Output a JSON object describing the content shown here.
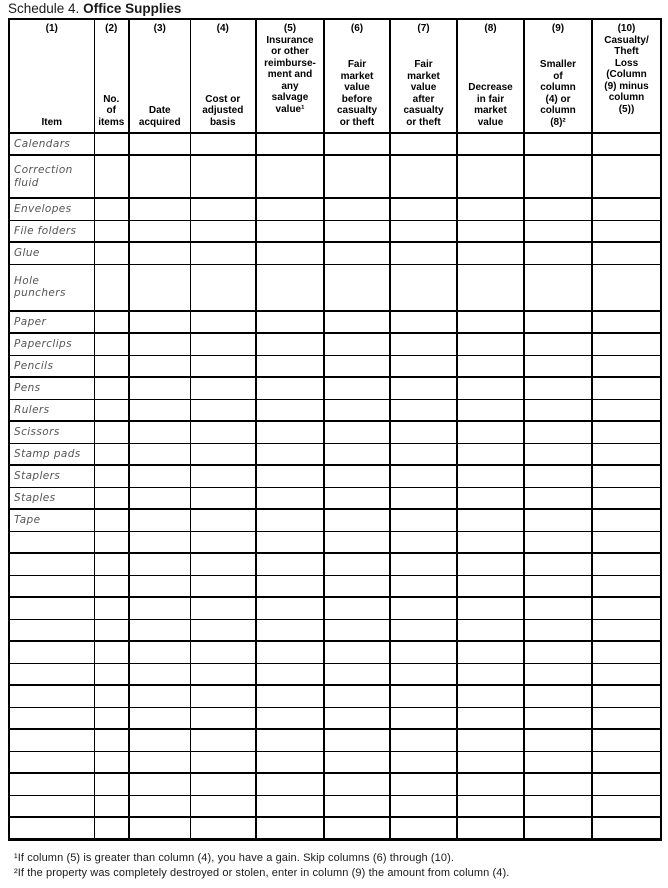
{
  "title": {
    "prefix": "Schedule 4.",
    "name": "Office Supplies"
  },
  "table": {
    "columns": [
      {
        "num": "(1)",
        "label": "Item"
      },
      {
        "num": "(2)",
        "label": "No.\nof\nitems"
      },
      {
        "num": "(3)",
        "label": "Date\nacquired"
      },
      {
        "num": "(4)",
        "label": "Cost or\nadjusted\nbasis"
      },
      {
        "num": "(5)",
        "label": "Insurance\nor other\nreimburse-\nment and\nany\nsalvage\nvalue¹"
      },
      {
        "num": "(6)",
        "label": "Fair\nmarket\nvalue\nbefore\ncasualty\nor theft"
      },
      {
        "num": "(7)",
        "label": "Fair\nmarket\nvalue\nafter\ncasualty\nor theft"
      },
      {
        "num": "(8)",
        "label": "Decrease\nin fair\nmarket\nvalue"
      },
      {
        "num": "(9)",
        "label": "Smaller\nof\ncolumn\n(4) or\ncolumn\n(8)²"
      },
      {
        "num": "(10)",
        "label": "Casualty/\nTheft\nLoss\n(Column\n(9) minus\ncolumn\n(5))"
      }
    ],
    "rows": [
      {
        "item": "Calendars",
        "size": "s",
        "border": "thick"
      },
      {
        "item": "Correction\nfluid",
        "size": "m",
        "border": "thick"
      },
      {
        "item": "Envelopes",
        "size": "s",
        "border": "thin"
      },
      {
        "item": "File folders",
        "size": "s",
        "border": "thick"
      },
      {
        "item": "Glue",
        "size": "s",
        "border": "thin"
      },
      {
        "item": "Hole\npunchers",
        "size": "l",
        "border": "thick"
      },
      {
        "item": "Paper",
        "size": "s",
        "border": "thick"
      },
      {
        "item": "Paperclips",
        "size": "s",
        "border": "thin"
      },
      {
        "item": "Pencils",
        "size": "s",
        "border": "thick"
      },
      {
        "item": "Pens",
        "size": "s",
        "border": "thin"
      },
      {
        "item": "Rulers",
        "size": "s",
        "border": "thick"
      },
      {
        "item": "Scissors",
        "size": "s",
        "border": "thin"
      },
      {
        "item": "Stamp pads",
        "size": "s",
        "border": "thick"
      },
      {
        "item": "Staplers",
        "size": "s",
        "border": "thin"
      },
      {
        "item": "Staples",
        "size": "s",
        "border": "thick"
      },
      {
        "item": "Tape",
        "size": "s",
        "border": "thin"
      },
      {
        "item": "",
        "size": "s",
        "border": "thick"
      },
      {
        "item": "",
        "size": "s",
        "border": "thin"
      },
      {
        "item": "",
        "size": "s",
        "border": "thick"
      },
      {
        "item": "",
        "size": "s",
        "border": "thin"
      },
      {
        "item": "",
        "size": "s",
        "border": "thick"
      },
      {
        "item": "",
        "size": "s",
        "border": "thin"
      },
      {
        "item": "",
        "size": "s",
        "border": "thick"
      },
      {
        "item": "",
        "size": "s",
        "border": "thin"
      },
      {
        "item": "",
        "size": "s",
        "border": "thick"
      },
      {
        "item": "",
        "size": "s",
        "border": "thin"
      },
      {
        "item": "",
        "size": "s",
        "border": "thick"
      },
      {
        "item": "",
        "size": "s",
        "border": "thin"
      },
      {
        "item": "",
        "size": "s",
        "border": "thick"
      },
      {
        "item": "",
        "size": "s",
        "border": "thick"
      }
    ]
  },
  "footnotes": [
    "¹If column (5) is greater than column (4), you have a gain. Skip columns (6) through (10).",
    "²If the property was completely destroyed or stolen, enter in column (9) the amount from column (4)."
  ]
}
